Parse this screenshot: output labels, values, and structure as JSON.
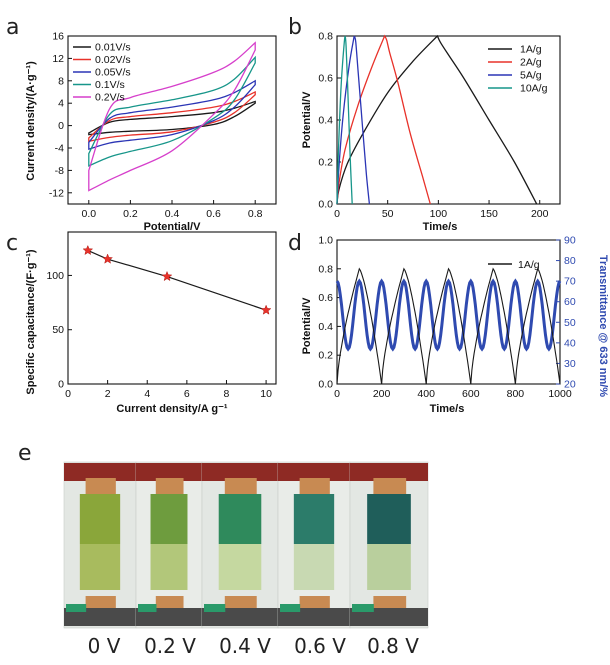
{
  "panel_labels": [
    "a",
    "b",
    "c",
    "d",
    "e"
  ],
  "colors": {
    "black": "#1a1a1a",
    "red": "#e8322a",
    "blue": "#2b35b5",
    "teal": "#17968a",
    "magenta": "#d63fcb",
    "star": "#e8322a",
    "transmittance": "#2f4ab0"
  },
  "chart_data": [
    {
      "id": "a",
      "type": "line",
      "xlabel": "Potential/V",
      "ylabel": "Current density/(A·g⁻¹)",
      "xlim": [
        -0.1,
        0.9
      ],
      "ylim": [
        -14,
        16
      ],
      "xticks": [
        0.0,
        0.2,
        0.4,
        0.6,
        0.8
      ],
      "xtick_labels": [
        "0.0",
        "0.2",
        "0.4",
        "0.6",
        "0.8"
      ],
      "yticks": [
        -12,
        -8,
        -4,
        0,
        4,
        8,
        12,
        16
      ],
      "yticks_labels": [
        "-12",
        "-8",
        "-4",
        "0",
        "4",
        "8",
        "12",
        "16"
      ],
      "legend_position": "top-left",
      "series": [
        {
          "name": "0.01V/s",
          "color": "#1a1a1a",
          "upper": [
            [
              0.0,
              -1.3
            ],
            [
              0.1,
              0.6
            ],
            [
              0.2,
              1.1
            ],
            [
              0.4,
              1.6
            ],
            [
              0.6,
              2.3
            ],
            [
              0.7,
              3.1
            ],
            [
              0.8,
              4.3
            ]
          ],
          "lower": [
            [
              0.8,
              4.0
            ],
            [
              0.7,
              1.6
            ],
            [
              0.6,
              0.2
            ],
            [
              0.4,
              -0.7
            ],
            [
              0.2,
              -1.0
            ],
            [
              0.1,
              -1.2
            ],
            [
              0.0,
              -1.6
            ]
          ]
        },
        {
          "name": "0.02V/s",
          "color": "#e8322a",
          "upper": [
            [
              0.0,
              -2.2
            ],
            [
              0.1,
              0.9
            ],
            [
              0.2,
              1.6
            ],
            [
              0.4,
              2.3
            ],
            [
              0.6,
              3.3
            ],
            [
              0.7,
              4.3
            ],
            [
              0.8,
              6.0
            ]
          ],
          "lower": [
            [
              0.8,
              5.5
            ],
            [
              0.7,
              2.3
            ],
            [
              0.6,
              0.6
            ],
            [
              0.4,
              -1.1
            ],
            [
              0.2,
              -1.7
            ],
            [
              0.1,
              -2.1
            ],
            [
              0.0,
              -2.8
            ]
          ]
        },
        {
          "name": "0.05V/s",
          "color": "#2b35b5",
          "upper": [
            [
              0.0,
              -3.0
            ],
            [
              0.1,
              1.3
            ],
            [
              0.2,
              2.3
            ],
            [
              0.4,
              3.3
            ],
            [
              0.6,
              4.6
            ],
            [
              0.7,
              5.9
            ],
            [
              0.8,
              8.0
            ]
          ],
          "lower": [
            [
              0.8,
              7.3
            ],
            [
              0.7,
              3.3
            ],
            [
              0.6,
              0.9
            ],
            [
              0.4,
              -1.6
            ],
            [
              0.2,
              -2.6
            ],
            [
              0.1,
              -3.1
            ],
            [
              0.0,
              -4.2
            ]
          ]
        },
        {
          "name": "0.1V/s",
          "color": "#17968a",
          "upper": [
            [
              0.0,
              -5.0
            ],
            [
              0.1,
              2.0
            ],
            [
              0.2,
              3.3
            ],
            [
              0.4,
              4.6
            ],
            [
              0.6,
              6.3
            ],
            [
              0.7,
              8.3
            ],
            [
              0.8,
              12.2
            ]
          ],
          "lower": [
            [
              0.8,
              11.2
            ],
            [
              0.7,
              4.6
            ],
            [
              0.6,
              1.3
            ],
            [
              0.4,
              -2.7
            ],
            [
              0.2,
              -4.6
            ],
            [
              0.1,
              -5.6
            ],
            [
              0.0,
              -7.2
            ]
          ]
        },
        {
          "name": "0.2V/s",
          "color": "#d63fcb",
          "upper": [
            [
              0.0,
              -8.0
            ],
            [
              0.1,
              3.0
            ],
            [
              0.2,
              5.0
            ],
            [
              0.4,
              7.0
            ],
            [
              0.6,
              9.5
            ],
            [
              0.7,
              11.5
            ],
            [
              0.8,
              14.8
            ]
          ],
          "lower": [
            [
              0.8,
              13.5
            ],
            [
              0.7,
              6.3
            ],
            [
              0.6,
              2.0
            ],
            [
              0.4,
              -4.5
            ],
            [
              0.2,
              -8.0
            ],
            [
              0.1,
              -9.7
            ],
            [
              0.0,
              -11.6
            ]
          ]
        }
      ]
    },
    {
      "id": "b",
      "type": "line",
      "xlabel": "Time/s",
      "ylabel": "Potential/V",
      "xlim": [
        0,
        220
      ],
      "ylim": [
        0,
        0.8
      ],
      "xticks": [
        0,
        50,
        100,
        150,
        200
      ],
      "xtick_labels": [
        "0",
        "50",
        "100",
        "150",
        "200"
      ],
      "yticks": [
        0.0,
        0.2,
        0.4,
        0.6,
        0.8
      ],
      "yticks_labels": [
        "0.0",
        "0.2",
        "0.4",
        "0.6",
        "0.8"
      ],
      "legend_position": "top-right",
      "series": [
        {
          "name": "1A/g",
          "color": "#1a1a1a",
          "x": [
            0,
            2,
            10,
            25,
            50,
            75,
            99,
            102,
            110,
            125,
            150,
            175,
            197
          ],
          "y": [
            0,
            0.07,
            0.19,
            0.33,
            0.53,
            0.68,
            0.8,
            0.77,
            0.71,
            0.6,
            0.4,
            0.2,
            0
          ]
        },
        {
          "name": "2A/g",
          "color": "#e8322a",
          "x": [
            0,
            2,
            8,
            20,
            35,
            47,
            49,
            52,
            60,
            72,
            85,
            92
          ],
          "y": [
            0,
            0.1,
            0.26,
            0.46,
            0.66,
            0.8,
            0.78,
            0.72,
            0.58,
            0.34,
            0.12,
            0
          ]
        },
        {
          "name": "5A/g",
          "color": "#2b35b5",
          "x": [
            0,
            2,
            6,
            12,
            17,
            18.5,
            21,
            25,
            29,
            32
          ],
          "y": [
            0,
            0.18,
            0.42,
            0.66,
            0.8,
            0.77,
            0.62,
            0.38,
            0.14,
            0
          ]
        },
        {
          "name": "10A/g",
          "color": "#17968a",
          "x": [
            0,
            1.5,
            4,
            7,
            8,
            9,
            11,
            13,
            15
          ],
          "y": [
            0,
            0.26,
            0.56,
            0.76,
            0.8,
            0.75,
            0.5,
            0.22,
            0
          ]
        }
      ]
    },
    {
      "id": "c",
      "type": "scatter",
      "xlabel": "Current density/A g⁻¹",
      "ylabel": "Specific capacitance/(F·g⁻¹)",
      "xlim": [
        0,
        10.5
      ],
      "ylim": [
        0,
        140
      ],
      "xticks": [
        0,
        2,
        4,
        6,
        8,
        10
      ],
      "xtick_labels": [
        "0",
        "2",
        "4",
        "6",
        "8",
        "10"
      ],
      "yticks": [
        0,
        50,
        100
      ],
      "yticks_labels": [
        "0",
        "50",
        "100"
      ],
      "x": [
        1,
        2,
        5,
        10
      ],
      "y": [
        123,
        115,
        99,
        68
      ]
    },
    {
      "id": "d",
      "type": "line",
      "xlabel": "Time/s",
      "ylabel": "Potential/V",
      "y2label": "Transmittance @ 633 nm/%",
      "xlim": [
        0,
        1000
      ],
      "ylim": [
        0,
        1.0
      ],
      "y2lim": [
        20,
        90
      ],
      "xticks": [
        0,
        200,
        400,
        600,
        800,
        1000
      ],
      "xtick_labels": [
        "0",
        "200",
        "400",
        "600",
        "800",
        "1000"
      ],
      "yticks": [
        0.0,
        0.2,
        0.4,
        0.6,
        0.8,
        1.0
      ],
      "yticks_labels": [
        "0.0",
        "0.2",
        "0.4",
        "0.6",
        "0.8",
        "1.0"
      ],
      "y2ticks": [
        20,
        30,
        40,
        50,
        60,
        70,
        80,
        90
      ],
      "y2ticks_labels": [
        "20",
        "30",
        "40",
        "50",
        "60",
        "70",
        "80",
        "90"
      ],
      "legend_position": "top-right",
      "potential_series": {
        "name": "1A/g",
        "color": "#1a1a1a",
        "period_s": 200,
        "peak_v": 0.8,
        "cycles": 5
      },
      "transmittance_series": {
        "color": "#2f4ab0",
        "period_s": 100,
        "min_pct": 37,
        "max_pct": 70,
        "phase": "max at t=0"
      }
    }
  ],
  "photo_panel": {
    "voltage_labels": [
      "0 V",
      "0.2 V",
      "0.4 V",
      "0.6 V",
      "0.8 V"
    ],
    "film_colors": [
      {
        "top": "#8aa63a",
        "bottom": "#a8bb5e"
      },
      {
        "top": "#6e9c3e",
        "bottom": "#b2c77a"
      },
      {
        "top": "#2f8a5c",
        "bottom": "#c5d8a0"
      },
      {
        "top": "#2c7c6a",
        "bottom": "#c8d9b2"
      },
      {
        "top": "#1f5e5a",
        "bottom": "#b9cf9d"
      }
    ]
  }
}
